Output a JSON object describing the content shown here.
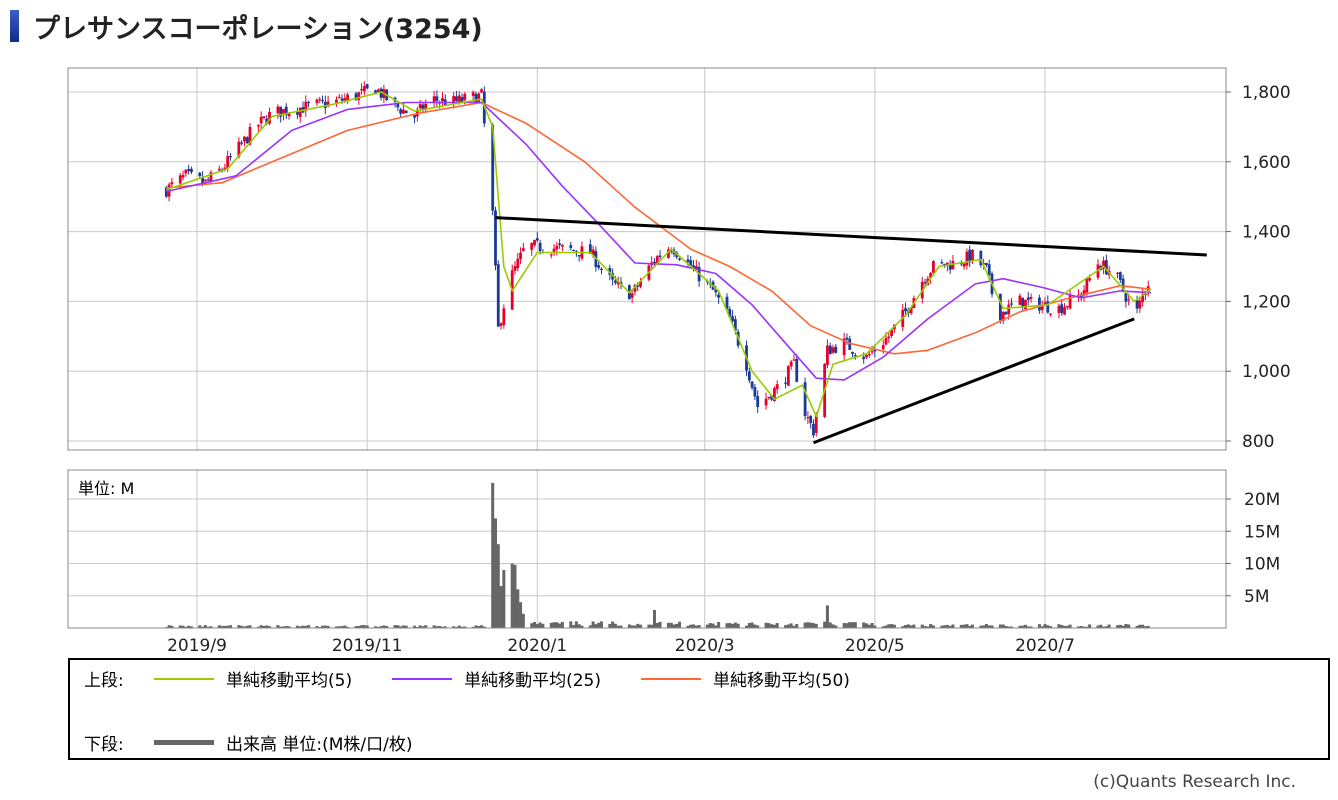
{
  "header": {
    "title": "プレサンスコーポレーション(3254)"
  },
  "chart_data": [
    {
      "type": "candlestick",
      "panel": "upper",
      "x_ticks": [
        "2019/9",
        "2019/11",
        "2020/1",
        "2020/3",
        "2020/5",
        "2020/7"
      ],
      "y_ticks": [
        "1,800",
        "1,600",
        "1,400",
        "1,200",
        "1,000",
        "800"
      ],
      "ylim": [
        780,
        1870
      ],
      "grid": true,
      "colors": {
        "up": "#e8002d",
        "down": "#1a3a9a",
        "ma5": "#99cc00",
        "ma25": "#9933ff",
        "ma50": "#ff6633",
        "trendline": "#000000"
      },
      "price_path": [
        [
          "2019-08-21",
          1520
        ],
        [
          "2019-08-28",
          1560
        ],
        [
          "2019-09-04",
          1540
        ],
        [
          "2019-09-10",
          1580
        ],
        [
          "2019-09-16",
          1640
        ],
        [
          "2019-09-22",
          1700
        ],
        [
          "2019-09-28",
          1740
        ],
        [
          "2019-10-05",
          1750
        ],
        [
          "2019-10-12",
          1760
        ],
        [
          "2019-10-20",
          1770
        ],
        [
          "2019-10-28",
          1790
        ],
        [
          "2019-11-04",
          1810
        ],
        [
          "2019-11-11",
          1760
        ],
        [
          "2019-11-18",
          1730
        ],
        [
          "2019-11-24",
          1780
        ],
        [
          "2019-12-01",
          1770
        ],
        [
          "2019-12-07",
          1780
        ],
        [
          "2019-12-12",
          1790
        ],
        [
          "2019-12-16",
          1450
        ],
        [
          "2019-12-18",
          1120
        ],
        [
          "2019-12-22",
          1260
        ],
        [
          "2019-12-28",
          1360
        ],
        [
          "2020-01-10",
          1350
        ],
        [
          "2020-01-20",
          1340
        ],
        [
          "2020-01-28",
          1250
        ],
        [
          "2020-02-04",
          1220
        ],
        [
          "2020-02-12",
          1320
        ],
        [
          "2020-02-18",
          1360
        ],
        [
          "2020-02-25",
          1300
        ],
        [
          "2020-03-04",
          1230
        ],
        [
          "2020-03-10",
          1150
        ],
        [
          "2020-03-16",
          1020
        ],
        [
          "2020-03-20",
          900
        ],
        [
          "2020-03-28",
          960
        ],
        [
          "2020-04-02",
          1020
        ],
        [
          "2020-04-06",
          880
        ],
        [
          "2020-04-09",
          830
        ],
        [
          "2020-04-14",
          1060
        ],
        [
          "2020-04-20",
          1080
        ],
        [
          "2020-04-28",
          1040
        ],
        [
          "2020-05-06",
          1100
        ],
        [
          "2020-05-12",
          1170
        ],
        [
          "2020-05-18",
          1260
        ],
        [
          "2020-05-22",
          1300
        ],
        [
          "2020-05-30",
          1310
        ],
        [
          "2020-06-05",
          1330
        ],
        [
          "2020-06-10",
          1290
        ],
        [
          "2020-06-14",
          1160
        ],
        [
          "2020-06-22",
          1200
        ],
        [
          "2020-06-30",
          1190
        ],
        [
          "2020-07-06",
          1180
        ],
        [
          "2020-07-14",
          1220
        ],
        [
          "2020-07-20",
          1310
        ],
        [
          "2020-07-26",
          1280
        ],
        [
          "2020-07-31",
          1200
        ],
        [
          "2020-08-03",
          1170
        ],
        [
          "2020-08-06",
          1240
        ],
        [
          "2020-08-08",
          1270
        ]
      ],
      "ma5": [
        [
          "2019-08-21",
          1520
        ],
        [
          "2019-09-12",
          1580
        ],
        [
          "2019-09-28",
          1730
        ],
        [
          "2019-10-20",
          1765
        ],
        [
          "2019-11-06",
          1800
        ],
        [
          "2019-11-18",
          1745
        ],
        [
          "2019-12-12",
          1780
        ],
        [
          "2019-12-16",
          1700
        ],
        [
          "2019-12-20",
          1300
        ],
        [
          "2019-12-23",
          1230
        ],
        [
          "2020-01-01",
          1340
        ],
        [
          "2020-01-20",
          1340
        ],
        [
          "2020-02-03",
          1225
        ],
        [
          "2020-02-18",
          1350
        ],
        [
          "2020-03-06",
          1230
        ],
        [
          "2020-03-18",
          1000
        ],
        [
          "2020-03-26",
          920
        ],
        [
          "2020-04-05",
          960
        ],
        [
          "2020-04-10",
          870
        ],
        [
          "2020-04-16",
          1020
        ],
        [
          "2020-04-28",
          1050
        ],
        [
          "2020-05-12",
          1160
        ],
        [
          "2020-05-24",
          1300
        ],
        [
          "2020-06-08",
          1320
        ],
        [
          "2020-06-16",
          1180
        ],
        [
          "2020-07-02",
          1190
        ],
        [
          "2020-07-22",
          1300
        ],
        [
          "2020-08-02",
          1200
        ],
        [
          "2020-08-08",
          1235
        ]
      ],
      "ma25": [
        [
          "2019-08-21",
          1515
        ],
        [
          "2019-09-15",
          1560
        ],
        [
          "2019-10-05",
          1690
        ],
        [
          "2019-10-25",
          1750
        ],
        [
          "2019-11-15",
          1770
        ],
        [
          "2019-12-12",
          1770
        ],
        [
          "2019-12-28",
          1650
        ],
        [
          "2020-01-10",
          1530
        ],
        [
          "2020-01-22",
          1430
        ],
        [
          "2020-02-05",
          1310
        ],
        [
          "2020-02-20",
          1305
        ],
        [
          "2020-03-05",
          1280
        ],
        [
          "2020-03-18",
          1190
        ],
        [
          "2020-03-30",
          1080
        ],
        [
          "2020-04-10",
          980
        ],
        [
          "2020-04-20",
          975
        ],
        [
          "2020-05-04",
          1040
        ],
        [
          "2020-05-20",
          1150
        ],
        [
          "2020-06-06",
          1250
        ],
        [
          "2020-06-16",
          1265
        ],
        [
          "2020-06-30",
          1240
        ],
        [
          "2020-07-14",
          1210
        ],
        [
          "2020-07-28",
          1230
        ],
        [
          "2020-08-08",
          1225
        ]
      ],
      "ma50": [
        [
          "2019-08-21",
          1525
        ],
        [
          "2019-09-10",
          1540
        ],
        [
          "2019-10-01",
          1610
        ],
        [
          "2019-10-25",
          1690
        ],
        [
          "2019-11-20",
          1740
        ],
        [
          "2019-12-12",
          1770
        ],
        [
          "2019-12-28",
          1710
        ],
        [
          "2020-01-18",
          1600
        ],
        [
          "2020-02-05",
          1470
        ],
        [
          "2020-02-25",
          1350
        ],
        [
          "2020-03-10",
          1300
        ],
        [
          "2020-03-25",
          1230
        ],
        [
          "2020-04-08",
          1130
        ],
        [
          "2020-04-22",
          1080
        ],
        [
          "2020-05-08",
          1050
        ],
        [
          "2020-05-20",
          1060
        ],
        [
          "2020-06-06",
          1110
        ],
        [
          "2020-06-22",
          1170
        ],
        [
          "2020-07-10",
          1210
        ],
        [
          "2020-07-28",
          1245
        ],
        [
          "2020-08-08",
          1235
        ]
      ],
      "trendlines": [
        {
          "from": [
            "2019-12-17",
            1440
          ],
          "to": [
            "2020-08-28",
            1333
          ]
        },
        {
          "from": [
            "2020-04-09",
            795
          ],
          "to": [
            "2020-08-02",
            1150
          ]
        }
      ]
    },
    {
      "type": "bar",
      "panel": "lower",
      "unit_label": "単位: M",
      "y_ticks": [
        "20M",
        "15M",
        "10M",
        "5M"
      ],
      "ylim": [
        0,
        25
      ],
      "grid": true,
      "bar_color": "#666666",
      "volume_spikes": [
        [
          "2019-12-16",
          22.5
        ],
        [
          "2019-12-17",
          17.0
        ],
        [
          "2019-12-18",
          13.0
        ],
        [
          "2019-12-19",
          6.5
        ],
        [
          "2019-12-20",
          9.0
        ],
        [
          "2019-12-23",
          10.0
        ],
        [
          "2019-12-24",
          9.8
        ],
        [
          "2019-12-25",
          6.0
        ],
        [
          "2019-12-26",
          4.0
        ],
        [
          "2019-12-27",
          2.2
        ],
        [
          "2020-02-12",
          2.8
        ],
        [
          "2020-04-14",
          3.5
        ]
      ]
    }
  ],
  "legend": {
    "upper_label": "上段:",
    "lower_label": "下段:",
    "items": [
      {
        "label": "単純移動平均(5)",
        "color": "#99cc00"
      },
      {
        "label": "単純移動平均(25)",
        "color": "#9933ff"
      },
      {
        "label": "単純移動平均(50)",
        "color": "#ff6633"
      }
    ],
    "volume_item": {
      "label": "出来高 単位:(M株/口/枚)",
      "color": "#666666"
    }
  },
  "footer": {
    "copyright": "(c)Quants Research Inc."
  }
}
